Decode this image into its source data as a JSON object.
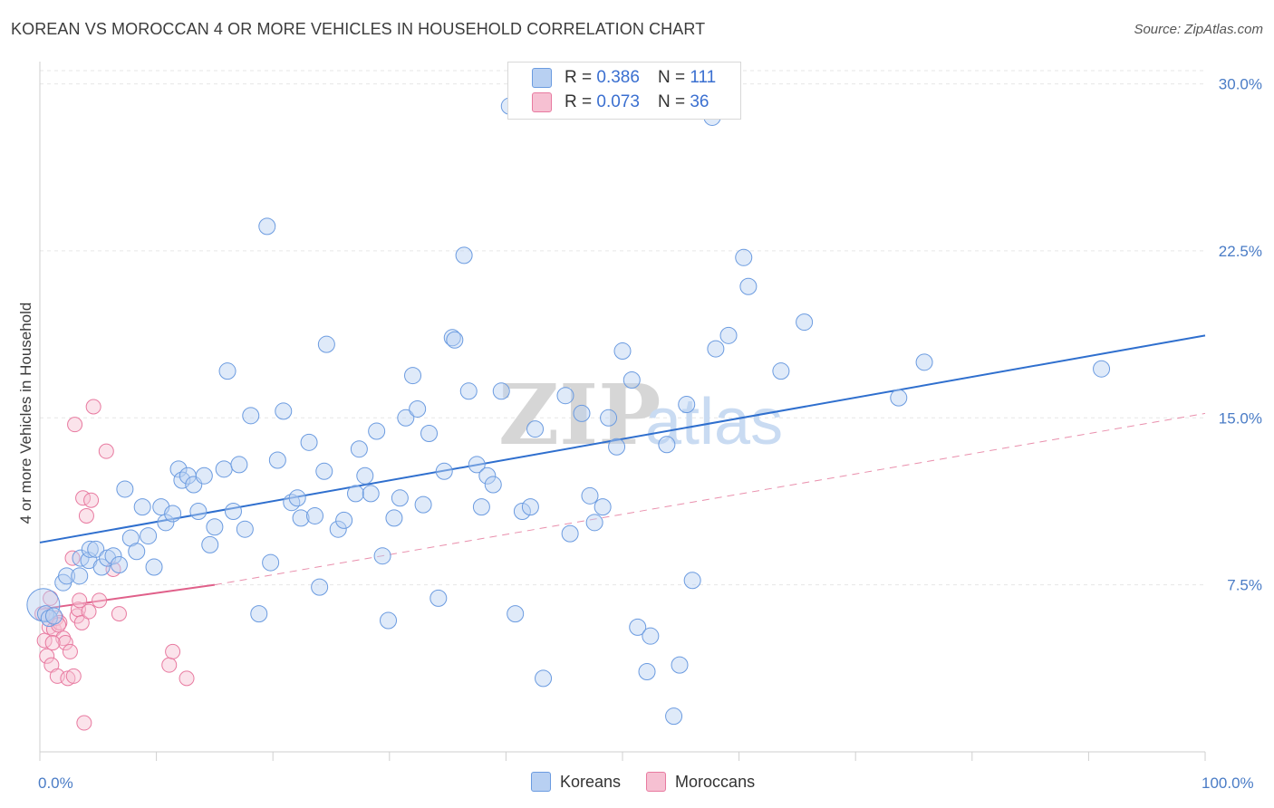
{
  "title": "KOREAN VS MOROCCAN 4 OR MORE VEHICLES IN HOUSEHOLD CORRELATION CHART",
  "source": "Source: ZipAtlas.com",
  "colors": {
    "korean": "#6b9be0",
    "korean_fill": "#b8d0f2",
    "moroccan": "#e87aa0",
    "moroccan_fill": "#f6c0d2",
    "korean_line": "#2f6fce",
    "moroccan_line": "#e0608a"
  },
  "legend": {
    "r_label": "R =",
    "n_label": "N =",
    "korean": {
      "r": "0.386",
      "n": "111"
    },
    "moroccan": {
      "r": "0.073",
      "n": "36"
    }
  },
  "bottom_legend": {
    "korean": "Koreans",
    "moroccan": "Moroccans"
  },
  "chart_data": {
    "type": "scatter",
    "title": "KOREAN VS MOROCCAN 4 OR MORE VEHICLES IN HOUSEHOLD CORRELATION CHART",
    "xlabel": "",
    "ylabel": "4 or more Vehicles in Household",
    "xlim": [
      0,
      100
    ],
    "ylim": [
      0,
      31
    ],
    "x_tick_labels": [
      "0.0%",
      "100.0%"
    ],
    "y_ticks": [
      7.5,
      15.0,
      22.5,
      30.0
    ],
    "y_tick_labels": [
      "7.5%",
      "15.0%",
      "22.5%",
      "30.0%"
    ],
    "watermark": {
      "zip": "ZIP",
      "atlas": "atlas"
    },
    "series": [
      {
        "name": "Koreans",
        "trend": {
          "x0": 0,
          "y0": 9.4,
          "x1": 100,
          "y1": 18.7,
          "style": "solid"
        },
        "points": [
          [
            0.3,
            6.6
          ],
          [
            0.5,
            6.2
          ],
          [
            0.8,
            6.0
          ],
          [
            1.2,
            6.1
          ],
          [
            2.0,
            7.6
          ],
          [
            2.3,
            7.9
          ],
          [
            3.4,
            7.9
          ],
          [
            3.5,
            8.7
          ],
          [
            4.2,
            8.6
          ],
          [
            4.3,
            9.1
          ],
          [
            4.8,
            9.1
          ],
          [
            5.3,
            8.3
          ],
          [
            5.8,
            8.7
          ],
          [
            6.3,
            8.8
          ],
          [
            6.8,
            8.4
          ],
          [
            7.3,
            11.8
          ],
          [
            7.8,
            9.6
          ],
          [
            8.3,
            9.0
          ],
          [
            8.8,
            11.0
          ],
          [
            9.3,
            9.7
          ],
          [
            9.8,
            8.3
          ],
          [
            10.4,
            11.0
          ],
          [
            10.8,
            10.3
          ],
          [
            11.4,
            10.7
          ],
          [
            11.9,
            12.7
          ],
          [
            12.2,
            12.2
          ],
          [
            12.7,
            12.4
          ],
          [
            13.2,
            12.0
          ],
          [
            13.6,
            10.8
          ],
          [
            14.1,
            12.4
          ],
          [
            14.6,
            9.3
          ],
          [
            15.0,
            10.1
          ],
          [
            15.8,
            12.7
          ],
          [
            16.1,
            17.1
          ],
          [
            16.6,
            10.8
          ],
          [
            17.1,
            12.9
          ],
          [
            17.6,
            10.0
          ],
          [
            18.1,
            15.1
          ],
          [
            18.8,
            6.2
          ],
          [
            19.5,
            23.6
          ],
          [
            19.8,
            8.5
          ],
          [
            20.4,
            13.1
          ],
          [
            20.9,
            15.3
          ],
          [
            21.6,
            11.2
          ],
          [
            22.1,
            11.4
          ],
          [
            22.4,
            10.5
          ],
          [
            23.1,
            13.9
          ],
          [
            23.6,
            10.6
          ],
          [
            24.0,
            7.4
          ],
          [
            24.4,
            12.6
          ],
          [
            24.6,
            18.3
          ],
          [
            25.6,
            10.0
          ],
          [
            26.1,
            10.4
          ],
          [
            27.1,
            11.6
          ],
          [
            27.4,
            13.6
          ],
          [
            27.9,
            12.4
          ],
          [
            28.4,
            11.6
          ],
          [
            28.9,
            14.4
          ],
          [
            29.4,
            8.8
          ],
          [
            29.9,
            5.9
          ],
          [
            30.4,
            10.5
          ],
          [
            30.9,
            11.4
          ],
          [
            31.4,
            15.0
          ],
          [
            32.0,
            16.9
          ],
          [
            32.4,
            15.4
          ],
          [
            32.9,
            11.1
          ],
          [
            33.4,
            14.3
          ],
          [
            34.2,
            6.9
          ],
          [
            34.7,
            12.6
          ],
          [
            35.4,
            18.6
          ],
          [
            35.6,
            18.5
          ],
          [
            36.4,
            22.3
          ],
          [
            36.8,
            16.2
          ],
          [
            37.5,
            12.9
          ],
          [
            37.9,
            11.0
          ],
          [
            38.4,
            12.4
          ],
          [
            38.9,
            12.0
          ],
          [
            39.6,
            16.2
          ],
          [
            40.3,
            29.0
          ],
          [
            40.8,
            6.2
          ],
          [
            41.4,
            10.8
          ],
          [
            42.1,
            11.0
          ],
          [
            42.5,
            14.5
          ],
          [
            43.2,
            3.3
          ],
          [
            45.1,
            16.0
          ],
          [
            45.5,
            9.8
          ],
          [
            46.5,
            15.2
          ],
          [
            47.2,
            11.5
          ],
          [
            47.6,
            10.3
          ],
          [
            48.3,
            11.0
          ],
          [
            48.8,
            15.0
          ],
          [
            49.5,
            13.7
          ],
          [
            50.0,
            18.0
          ],
          [
            50.8,
            16.7
          ],
          [
            51.3,
            5.6
          ],
          [
            52.1,
            3.6
          ],
          [
            52.4,
            5.2
          ],
          [
            53.8,
            13.8
          ],
          [
            54.4,
            1.6
          ],
          [
            54.9,
            3.9
          ],
          [
            55.5,
            15.6
          ],
          [
            56.0,
            7.7
          ],
          [
            57.7,
            28.5
          ],
          [
            58.0,
            18.1
          ],
          [
            59.1,
            18.7
          ],
          [
            60.4,
            22.2
          ],
          [
            60.8,
            20.9
          ],
          [
            63.6,
            17.1
          ],
          [
            65.6,
            19.3
          ],
          [
            73.7,
            15.9
          ],
          [
            75.9,
            17.5
          ],
          [
            91.1,
            17.2
          ]
        ]
      },
      {
        "name": "Moroccans",
        "trend": {
          "x0": 0,
          "y0": 6.4,
          "x1": 15,
          "y1": 7.5,
          "style": "solid",
          "extend_to": [
            100,
            15.2
          ],
          "extend_style": "dashed"
        },
        "points": [
          [
            0.2,
            6.2
          ],
          [
            0.4,
            5.0
          ],
          [
            0.6,
            4.3
          ],
          [
            0.8,
            5.6
          ],
          [
            1.0,
            3.9
          ],
          [
            1.2,
            5.5
          ],
          [
            1.4,
            6.0
          ],
          [
            1.5,
            3.4
          ],
          [
            1.7,
            5.8
          ],
          [
            2.0,
            5.1
          ],
          [
            2.2,
            4.9
          ],
          [
            2.4,
            3.3
          ],
          [
            2.6,
            4.5
          ],
          [
            2.8,
            8.7
          ],
          [
            3.0,
            14.7
          ],
          [
            3.2,
            6.1
          ],
          [
            3.3,
            6.4
          ],
          [
            3.4,
            6.8
          ],
          [
            3.6,
            5.8
          ],
          [
            3.7,
            11.4
          ],
          [
            3.8,
            1.3
          ],
          [
            4.0,
            10.6
          ],
          [
            4.2,
            6.3
          ],
          [
            4.4,
            11.3
          ],
          [
            4.6,
            15.5
          ],
          [
            5.1,
            6.8
          ],
          [
            5.7,
            13.5
          ],
          [
            6.3,
            8.2
          ],
          [
            6.8,
            6.2
          ],
          [
            11.1,
            3.9
          ],
          [
            11.4,
            4.5
          ],
          [
            12.6,
            3.3
          ],
          [
            0.9,
            6.9
          ],
          [
            1.6,
            5.7
          ],
          [
            2.9,
            3.4
          ],
          [
            1.1,
            4.9
          ]
        ]
      }
    ]
  }
}
